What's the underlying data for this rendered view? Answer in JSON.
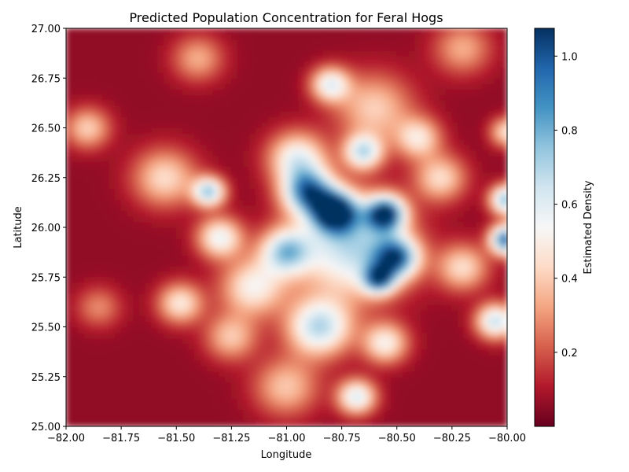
{
  "chart_data": {
    "type": "heatmap",
    "title": "Predicted Population Concentration for Feral Hogs",
    "xlabel": "Longitude",
    "ylabel": "Latitude",
    "colorbar_label": "Estimated Density",
    "xlim": [
      -82.0,
      -80.0
    ],
    "ylim": [
      25.0,
      27.0
    ],
    "value_range": [
      0.0,
      1.075
    ],
    "colormap": "RdBu",
    "colormap_stops": [
      "#67001f",
      "#b2182b",
      "#d6604d",
      "#f4a582",
      "#fddbc7",
      "#f7f7f7",
      "#d1e5f0",
      "#92c5de",
      "#4393c3",
      "#2166ac",
      "#053061"
    ],
    "x_ticks": [
      -82.0,
      -81.75,
      -81.5,
      -81.25,
      -81.0,
      -80.75,
      -80.5,
      -80.25,
      -80.0
    ],
    "x_tick_labels": [
      "−82.00",
      "−81.75",
      "−81.50",
      "−81.25",
      "−81.00",
      "−80.75",
      "−80.50",
      "−80.25",
      "−80.00"
    ],
    "y_ticks": [
      25.0,
      25.25,
      25.5,
      25.75,
      26.0,
      26.25,
      26.5,
      26.75,
      27.0
    ],
    "y_tick_labels": [
      "25.00",
      "25.25",
      "25.50",
      "25.75",
      "26.00",
      "26.25",
      "26.50",
      "26.75",
      "27.00"
    ],
    "colorbar_ticks": [
      0.2,
      0.4,
      0.6,
      0.8,
      1.0
    ],
    "colorbar_tick_labels": [
      "0.2",
      "0.4",
      "0.6",
      "0.8",
      "1.0"
    ],
    "base_density": 0.06,
    "hotspots": [
      {
        "lon": -80.78,
        "lat": 26.08,
        "density": 1.0,
        "spread": 0.07
      },
      {
        "lon": -80.9,
        "lat": 26.18,
        "density": 0.8,
        "spread": 0.08
      },
      {
        "lon": -80.55,
        "lat": 26.07,
        "density": 0.92,
        "spread": 0.06
      },
      {
        "lon": -80.5,
        "lat": 25.85,
        "density": 0.75,
        "spread": 0.07
      },
      {
        "lon": -80.58,
        "lat": 25.74,
        "density": 0.7,
        "spread": 0.05
      },
      {
        "lon": -80.7,
        "lat": 25.9,
        "density": 0.62,
        "spread": 0.17
      },
      {
        "lon": -81.0,
        "lat": 25.88,
        "density": 0.6,
        "spread": 0.08
      },
      {
        "lon": -80.85,
        "lat": 25.5,
        "density": 0.62,
        "spread": 0.1
      },
      {
        "lon": -80.0,
        "lat": 25.94,
        "density": 0.95,
        "spread": 0.05
      },
      {
        "lon": -80.0,
        "lat": 26.14,
        "density": 0.72,
        "spread": 0.05
      },
      {
        "lon": -80.05,
        "lat": 25.53,
        "density": 0.6,
        "spread": 0.06
      },
      {
        "lon": -81.35,
        "lat": 26.18,
        "density": 0.65,
        "spread": 0.05
      },
      {
        "lon": -80.65,
        "lat": 26.38,
        "density": 0.58,
        "spread": 0.06
      },
      {
        "lon": -81.3,
        "lat": 25.95,
        "density": 0.5,
        "spread": 0.07
      },
      {
        "lon": -80.68,
        "lat": 25.15,
        "density": 0.55,
        "spread": 0.06
      },
      {
        "lon": -80.8,
        "lat": 26.72,
        "density": 0.5,
        "spread": 0.06
      },
      {
        "lon": -80.95,
        "lat": 26.35,
        "density": 0.5,
        "spread": 0.09
      },
      {
        "lon": -80.55,
        "lat": 25.42,
        "density": 0.45,
        "spread": 0.07
      },
      {
        "lon": -81.48,
        "lat": 25.62,
        "density": 0.42,
        "spread": 0.07
      },
      {
        "lon": -81.15,
        "lat": 25.7,
        "density": 0.45,
        "spread": 0.1
      },
      {
        "lon": -80.6,
        "lat": 26.6,
        "density": 0.35,
        "spread": 0.12
      },
      {
        "lon": -81.9,
        "lat": 26.5,
        "density": 0.35,
        "spread": 0.07
      },
      {
        "lon": -81.55,
        "lat": 26.25,
        "density": 0.38,
        "spread": 0.1
      },
      {
        "lon": -80.3,
        "lat": 26.25,
        "density": 0.38,
        "spread": 0.08
      },
      {
        "lon": -80.2,
        "lat": 25.8,
        "density": 0.38,
        "spread": 0.08
      },
      {
        "lon": -81.0,
        "lat": 25.2,
        "density": 0.33,
        "spread": 0.1
      },
      {
        "lon": -81.25,
        "lat": 25.45,
        "density": 0.33,
        "spread": 0.08
      },
      {
        "lon": -80.4,
        "lat": 26.45,
        "density": 0.4,
        "spread": 0.07
      },
      {
        "lon": -80.0,
        "lat": 26.48,
        "density": 0.4,
        "spread": 0.05
      },
      {
        "lon": -81.4,
        "lat": 26.85,
        "density": 0.28,
        "spread": 0.08
      },
      {
        "lon": -80.2,
        "lat": 26.9,
        "density": 0.28,
        "spread": 0.09
      },
      {
        "lon": -81.85,
        "lat": 25.6,
        "density": 0.22,
        "spread": 0.07
      }
    ]
  }
}
